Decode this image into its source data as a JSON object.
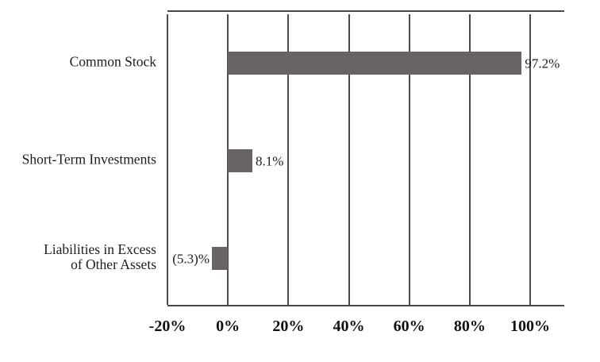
{
  "chart_data": {
    "type": "bar",
    "orientation": "horizontal",
    "title": "",
    "categories": [
      "Common Stock",
      "Short-Term Investments",
      "Liabilities in Excess\nof Other Assets"
    ],
    "values": [
      97.2,
      8.1,
      -5.3
    ],
    "value_labels": [
      "97.2%",
      "8.1%",
      "(5.3)%"
    ],
    "x_tick_labels": [
      "-20%",
      "0%",
      "20%",
      "40%",
      "60%",
      "80%",
      "100%"
    ],
    "x_tick_values": [
      -20,
      0,
      20,
      40,
      60,
      80,
      100
    ],
    "xlim": [
      -20,
      111.3
    ],
    "grid": "vertical-gridlines",
    "legend_position": "none",
    "colors": {
      "bar": "#686465",
      "gridline": "#4e4b4c",
      "axis": "#4a4747",
      "label_text": "#1e1c1c",
      "tick_text": "#121010",
      "background": "#ffffff"
    }
  }
}
